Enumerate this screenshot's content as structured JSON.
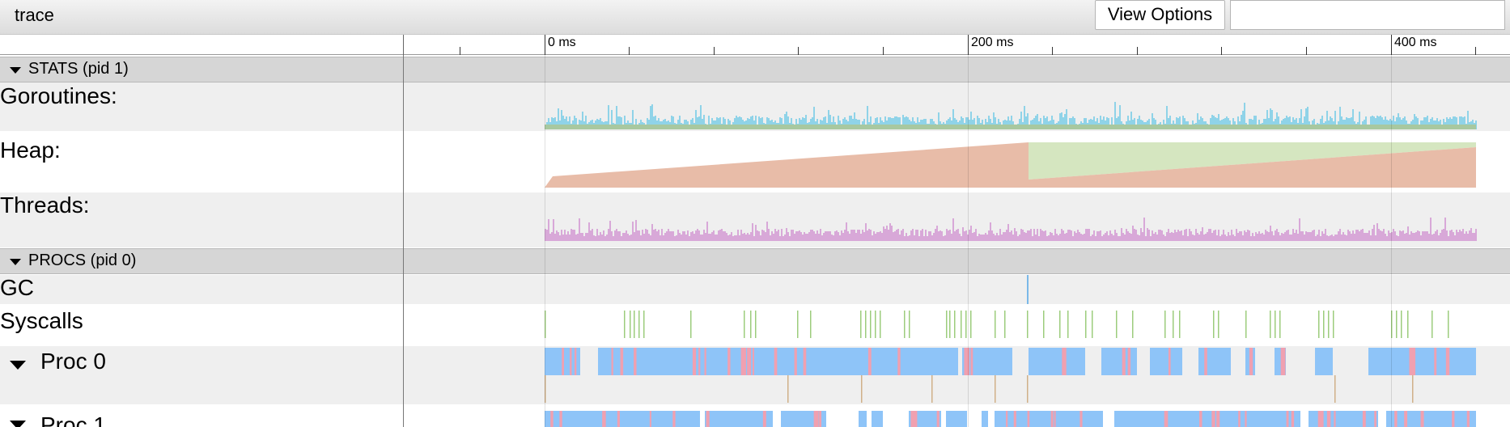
{
  "toolbar": {
    "title": "trace",
    "view_options_label": "View Options",
    "search_value": ""
  },
  "ruler": {
    "labels": [
      "0 ms",
      "200 ms",
      "400 ms"
    ]
  },
  "groups": {
    "stats": {
      "label": "STATS (pid 1)"
    },
    "procs": {
      "label": "PROCS (pid 0)"
    }
  },
  "tracks": {
    "goroutines": "Goroutines:",
    "heap": "Heap:",
    "threads": "Threads:",
    "gc": "GC",
    "syscalls": "Syscalls",
    "proc0": "Proc 0",
    "proc1": "Proc 1"
  },
  "colors": {
    "goroutines": "#8fd3e8",
    "goroutines_base": "#a8c8a0",
    "heap_allocated": "#e8bca8",
    "heap_next_gc": "#d5e6c0",
    "threads": "#d8a8d8",
    "syscall": "#9ccc7c",
    "proc_blue": "#8ec4f8",
    "proc_red": "#f0a0b0",
    "gc": "#7ab8e8"
  }
}
